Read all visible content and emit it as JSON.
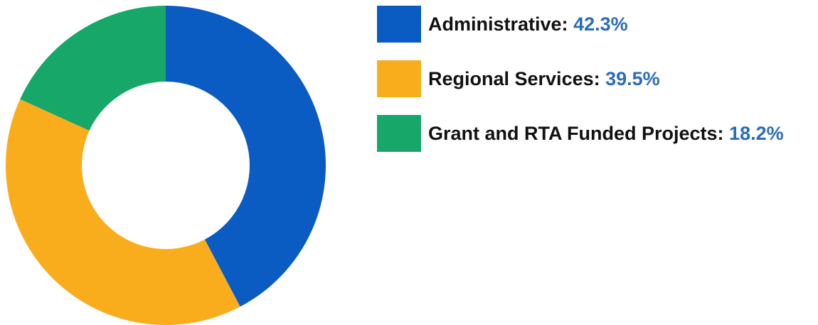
{
  "chart_data": {
    "type": "pie",
    "style": "donut",
    "slices": [
      {
        "label": "Administrative",
        "value": 42.3,
        "value_text": "42.3%",
        "color": "#0a5bc2"
      },
      {
        "label": "Regional Services",
        "value": 39.5,
        "value_text": "39.5%",
        "color": "#f9ad1c"
      },
      {
        "label": "Grant and RTA Funded Projects",
        "value": 18.2,
        "value_text": "18.2%",
        "color": "#16a769"
      }
    ],
    "legend_position": "right",
    "value_color": "#2a6db5"
  },
  "legend": {
    "items": [
      {
        "label": "Administrative:",
        "value": "42.3%"
      },
      {
        "label": "Regional Services:",
        "value": "39.5%"
      },
      {
        "label": "Grant and RTA Funded Projects:",
        "value": "18.2%"
      }
    ]
  }
}
